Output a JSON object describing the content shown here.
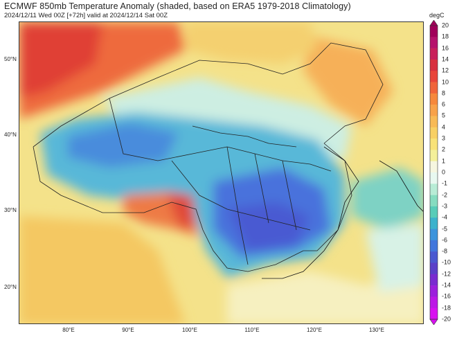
{
  "header": {
    "title": "ECMWF 850mb Temperature Anomaly (shaded, based on ERA5 1979-2018 Climatology)",
    "subtitle": "2024/12/11 Wed 00Z [+72h] valid at 2024/12/14 Sat 00Z"
  },
  "map": {
    "lat_labels": [
      "50°N",
      "40°N",
      "30°N",
      "20°N"
    ],
    "lon_labels": [
      "80°E",
      "90°E",
      "100°E",
      "110°E",
      "120°E",
      "130°E"
    ]
  },
  "colorbar": {
    "unit": "degC",
    "labels": [
      "20",
      "18",
      "16",
      "14",
      "12",
      "10",
      "8",
      "6",
      "5",
      "4",
      "3",
      "2",
      "1",
      "0",
      "-1",
      "-2",
      "-3",
      "-4",
      "-5",
      "-6",
      "-8",
      "-10",
      "-12",
      "-14",
      "-16",
      "-18",
      "-20"
    ],
    "colors": [
      "#a0005a",
      "#b5126c",
      "#c8205a",
      "#d83040",
      "#e8453a",
      "#f0643a",
      "#f6883c",
      "#f8a24a",
      "#f8ba56",
      "#f8d064",
      "#f8e278",
      "#f4f09a",
      "#f6f6e0",
      "#e8f8f0",
      "#b8ecd6",
      "#86dcc0",
      "#58ccb8",
      "#3cb2cc",
      "#3c94dc",
      "#4276dc",
      "#4a58d0",
      "#5a40c8",
      "#7a2cd0",
      "#9c20dc",
      "#bc18e6",
      "#d810f0"
    ]
  }
}
